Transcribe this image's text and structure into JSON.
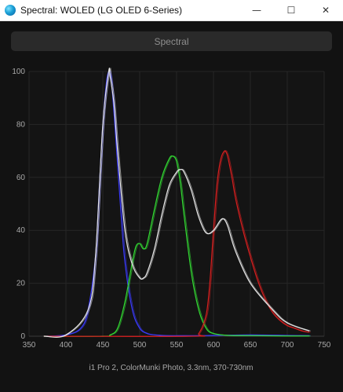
{
  "window": {
    "title": "Spectral: WOLED (LG OLED 6-Series)",
    "minimize": "—",
    "maximize": "☐",
    "close": "✕"
  },
  "toolbar": {
    "spectral_button": "Spectral"
  },
  "chart_data": {
    "type": "line",
    "title": "",
    "xlabel": "",
    "ylabel": "",
    "caption": "i1 Pro 2, ColorMunki Photo, 3.3nm, 370-730nm",
    "xlim": [
      350,
      750
    ],
    "ylim": [
      0,
      100
    ],
    "xticks": [
      350,
      400,
      450,
      500,
      550,
      600,
      650,
      700,
      750
    ],
    "yticks": [
      0,
      20,
      40,
      60,
      80,
      100
    ],
    "grid": true,
    "colors": {
      "blue": "#3b3bff",
      "green": "#33dd33",
      "red": "#d81f1f",
      "white": "#e8e8e8"
    },
    "series": [
      {
        "color": "blue",
        "x": [
          370,
          400,
          420,
          430,
          440,
          445,
          450,
          455,
          458,
          460,
          462,
          465,
          470,
          475,
          480,
          490,
          500,
          510,
          520,
          530,
          540,
          550,
          560,
          580,
          600,
          650,
          700,
          730
        ],
        "y": [
          0,
          0.5,
          3,
          10,
          30,
          55,
          80,
          96,
          100,
          99,
          95,
          85,
          65,
          45,
          28,
          10,
          3,
          1,
          0.5,
          0.3,
          0.2,
          0.2,
          0.2,
          0.2,
          0.3,
          0.5,
          0.3,
          0.2
        ]
      },
      {
        "color": "green",
        "x": [
          370,
          450,
          460,
          470,
          480,
          490,
          495,
          500,
          505,
          510,
          520,
          530,
          540,
          545,
          550,
          555,
          560,
          570,
          580,
          590,
          600,
          620,
          650,
          700,
          730
        ],
        "y": [
          0,
          0,
          0.5,
          3,
          13,
          28,
          34,
          35,
          33,
          35,
          48,
          60,
          67,
          68,
          66,
          58,
          46,
          24,
          10,
          3,
          1,
          0.3,
          0.2,
          0.1,
          0.1
        ]
      },
      {
        "color": "red",
        "x": [
          370,
          570,
          580,
          590,
          595,
          600,
          605,
          610,
          615,
          618,
          620,
          625,
          630,
          640,
          650,
          660,
          670,
          680,
          690,
          700,
          710,
          720,
          730
        ],
        "y": [
          0,
          0,
          1,
          8,
          20,
          40,
          58,
          67,
          70,
          69,
          67,
          60,
          52,
          40,
          30,
          21,
          14,
          9,
          6,
          4,
          3,
          2,
          1.5
        ]
      },
      {
        "color": "white",
        "x": [
          370,
          400,
          430,
          440,
          450,
          458,
          460,
          465,
          470,
          480,
          490,
          500,
          505,
          510,
          520,
          530,
          540,
          550,
          555,
          560,
          570,
          580,
          590,
          600,
          610,
          615,
          620,
          630,
          650,
          680,
          700,
          730
        ],
        "y": [
          0,
          0.5,
          10,
          30,
          80,
          100,
          98,
          88,
          70,
          40,
          27,
          22,
          22,
          24,
          33,
          46,
          57,
          62,
          63,
          62,
          55,
          45,
          39,
          40,
          44,
          44,
          41,
          32,
          20,
          10,
          5,
          2
        ]
      }
    ]
  }
}
